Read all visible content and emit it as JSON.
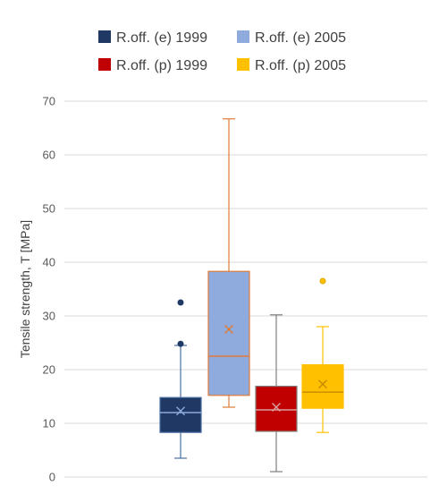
{
  "chart_data": {
    "type": "box",
    "ylabel": "Tensile strength, T [MPa]",
    "xlabel": "",
    "ylim": [
      0,
      70
    ],
    "yticks": [
      0,
      10,
      20,
      30,
      40,
      50,
      60,
      70
    ],
    "grid": true,
    "legend_position": "top",
    "series": [
      {
        "name": "R.off. (e) 1999",
        "color": "#1f3864",
        "whisker_color": "#4a6fa5",
        "median_color": "#8faadc",
        "min": 3.5,
        "q1": 8.3,
        "median": 12.0,
        "q3": 14.8,
        "max": 24.5,
        "mean": 12.3,
        "outliers": [
          24.8,
          32.5
        ]
      },
      {
        "name": "R.off. (e) 2005",
        "color": "#8faadc",
        "whisker_color": "#e07b39",
        "median_color": "#e07b39",
        "min": 13.0,
        "q1": 15.2,
        "median": 22.5,
        "q3": 38.3,
        "max": 66.7,
        "mean": 27.5,
        "outliers": []
      },
      {
        "name": "R.off. (p) 1999",
        "color": "#c00000",
        "whisker_color": "#7f7f7f",
        "median_color": "#d9a0a0",
        "min": 1.0,
        "q1": 8.5,
        "median": 12.5,
        "q3": 16.9,
        "max": 30.2,
        "mean": 13.0,
        "outliers": []
      },
      {
        "name": "R.off. (p) 2005",
        "color": "#ffc000",
        "whisker_color": "#ffc000",
        "median_color": "#c58a00",
        "min": 8.3,
        "q1": 12.8,
        "median": 15.8,
        "q3": 20.9,
        "max": 28.0,
        "mean": 17.3,
        "outliers": [
          36.5
        ]
      }
    ]
  }
}
